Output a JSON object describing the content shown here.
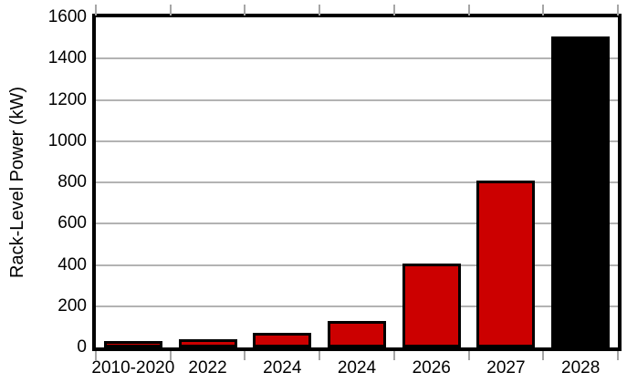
{
  "chart_data": {
    "type": "bar",
    "categories": [
      "2010-2020",
      "2022",
      "2024",
      "2024",
      "2026",
      "2027",
      "2028"
    ],
    "values": [
      15,
      30,
      60,
      120,
      400,
      800,
      1500
    ],
    "bar_colors": [
      "#cc0000",
      "#cc0000",
      "#cc0000",
      "#cc0000",
      "#cc0000",
      "#cc0000",
      "#000000"
    ],
    "title": "",
    "xlabel": "",
    "ylabel": "Rack-Level Power (kW)",
    "ylim": [
      0,
      1600
    ],
    "yticks": [
      0,
      200,
      400,
      600,
      800,
      1000,
      1200,
      1400,
      1600
    ],
    "grid": "horizontal-only",
    "legend": "none",
    "styles": {
      "bar_fill_default": "#cc0000",
      "bar_fill_last": "#000000",
      "bar_edge_color": "#000000",
      "grid_color": "#b3b3b3",
      "tick_mark_color": "#a6a6a6",
      "frame_color": "#000000",
      "text_color": "#000000",
      "background": "#ffffff"
    }
  }
}
